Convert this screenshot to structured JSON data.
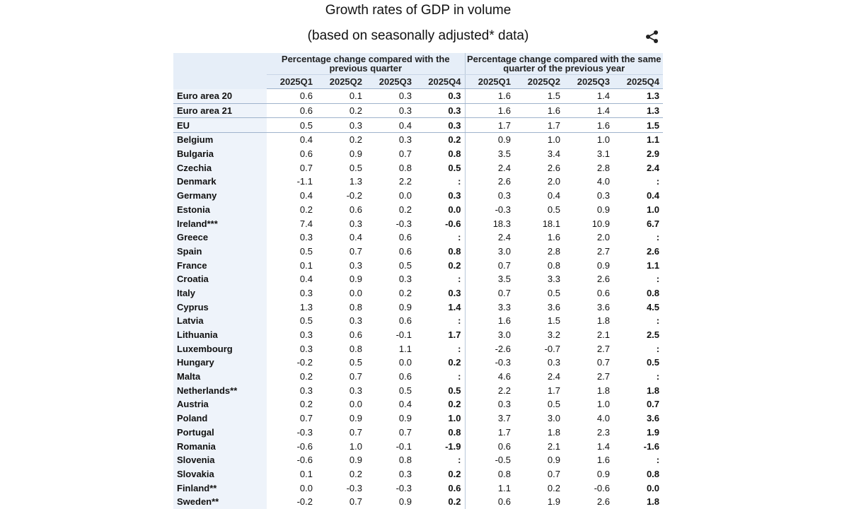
{
  "header": {
    "title": "Growth rates of GDP in volume",
    "subtitle": "(based on seasonally adjusted* data)"
  },
  "table": {
    "groups": [
      {
        "label": "Percentage change compared with the previous quarter",
        "columns": [
          "2025Q1",
          "2025Q2",
          "2025Q3",
          "2025Q4"
        ]
      },
      {
        "label": "Percentage change compared with the same quarter of the previous year",
        "columns": [
          "2025Q1",
          "2025Q2",
          "2025Q3",
          "2025Q4"
        ]
      }
    ],
    "rows": [
      {
        "label": "Euro area 20",
        "values": [
          "0.6",
          "0.1",
          "0.3",
          "0.3",
          "1.6",
          "1.5",
          "1.4",
          "1.3"
        ]
      },
      {
        "label": "Euro area 21",
        "values": [
          "0.6",
          "0.2",
          "0.3",
          "0.3",
          "1.6",
          "1.6",
          "1.4",
          "1.3"
        ]
      },
      {
        "label": "EU",
        "values": [
          "0.5",
          "0.3",
          "0.4",
          "0.3",
          "1.7",
          "1.7",
          "1.6",
          "1.5"
        ]
      },
      {
        "label": "Belgium",
        "values": [
          "0.4",
          "0.2",
          "0.3",
          "0.2",
          "0.9",
          "1.0",
          "1.0",
          "1.1"
        ]
      },
      {
        "label": "Bulgaria",
        "values": [
          "0.6",
          "0.9",
          "0.7",
          "0.8",
          "3.5",
          "3.4",
          "3.1",
          "2.9"
        ]
      },
      {
        "label": "Czechia",
        "values": [
          "0.7",
          "0.5",
          "0.8",
          "0.5",
          "2.4",
          "2.6",
          "2.8",
          "2.4"
        ]
      },
      {
        "label": "Denmark",
        "values": [
          "-1.1",
          "1.3",
          "2.2",
          ":",
          "2.6",
          "2.0",
          "4.0",
          ":"
        ]
      },
      {
        "label": "Germany",
        "values": [
          "0.4",
          "-0.2",
          "0.0",
          "0.3",
          "0.3",
          "0.4",
          "0.3",
          "0.4"
        ]
      },
      {
        "label": "Estonia",
        "values": [
          "0.2",
          "0.6",
          "0.2",
          "0.0",
          "-0.3",
          "0.5",
          "0.9",
          "1.0"
        ]
      },
      {
        "label": "Ireland***",
        "values": [
          "7.4",
          "0.3",
          "-0.3",
          "-0.6",
          "18.3",
          "18.1",
          "10.9",
          "6.7"
        ]
      },
      {
        "label": "Greece",
        "values": [
          "0.3",
          "0.4",
          "0.6",
          ":",
          "2.4",
          "1.6",
          "2.0",
          ":"
        ]
      },
      {
        "label": "Spain",
        "values": [
          "0.5",
          "0.7",
          "0.6",
          "0.8",
          "3.0",
          "2.8",
          "2.7",
          "2.6"
        ]
      },
      {
        "label": "France",
        "values": [
          "0.1",
          "0.3",
          "0.5",
          "0.2",
          "0.7",
          "0.8",
          "0.9",
          "1.1"
        ]
      },
      {
        "label": "Croatia",
        "values": [
          "0.4",
          "0.9",
          "0.3",
          ":",
          "3.5",
          "3.3",
          "2.6",
          ":"
        ]
      },
      {
        "label": "Italy",
        "values": [
          "0.3",
          "0.0",
          "0.2",
          "0.3",
          "0.7",
          "0.5",
          "0.6",
          "0.8"
        ]
      },
      {
        "label": "Cyprus",
        "values": [
          "1.3",
          "0.8",
          "0.9",
          "1.4",
          "3.3",
          "3.6",
          "3.6",
          "4.5"
        ]
      },
      {
        "label": "Latvia",
        "values": [
          "0.5",
          "0.3",
          "0.6",
          ":",
          "1.6",
          "1.5",
          "1.8",
          ":"
        ]
      },
      {
        "label": "Lithuania",
        "values": [
          "0.3",
          "0.6",
          "-0.1",
          "1.7",
          "3.0",
          "3.2",
          "2.1",
          "2.5"
        ]
      },
      {
        "label": "Luxembourg",
        "values": [
          "0.3",
          "0.8",
          "1.1",
          ":",
          "-2.6",
          "-0.7",
          "2.7",
          ":"
        ]
      },
      {
        "label": "Hungary",
        "values": [
          "-0.2",
          "0.5",
          "0.0",
          "0.2",
          "-0.3",
          "0.3",
          "0.7",
          "0.5"
        ]
      },
      {
        "label": "Malta",
        "values": [
          "0.2",
          "0.7",
          "0.6",
          ":",
          "4.6",
          "2.4",
          "2.7",
          ":"
        ]
      },
      {
        "label": "Netherlands**",
        "values": [
          "0.3",
          "0.3",
          "0.5",
          "0.5",
          "2.2",
          "1.7",
          "1.8",
          "1.8"
        ]
      },
      {
        "label": "Austria",
        "values": [
          "0.2",
          "0.0",
          "0.4",
          "0.2",
          "0.3",
          "0.5",
          "1.0",
          "0.7"
        ]
      },
      {
        "label": "Poland",
        "values": [
          "0.7",
          "0.9",
          "0.9",
          "1.0",
          "3.7",
          "3.0",
          "4.0",
          "3.6"
        ]
      },
      {
        "label": "Portugal",
        "values": [
          "-0.3",
          "0.7",
          "0.7",
          "0.8",
          "1.7",
          "1.8",
          "2.3",
          "1.9"
        ]
      },
      {
        "label": "Romania",
        "values": [
          "-0.6",
          "1.0",
          "-0.1",
          "-1.9",
          "0.6",
          "2.1",
          "1.4",
          "-1.6"
        ]
      },
      {
        "label": "Slovenia",
        "values": [
          "-0.6",
          "0.9",
          "0.8",
          ":",
          "-0.5",
          "0.9",
          "1.6",
          ":"
        ]
      },
      {
        "label": "Slovakia",
        "values": [
          "0.1",
          "0.2",
          "0.3",
          "0.2",
          "0.8",
          "0.7",
          "0.9",
          "0.8"
        ]
      },
      {
        "label": "Finland**",
        "values": [
          "0.0",
          "-0.3",
          "-0.3",
          "0.6",
          "1.1",
          "0.2",
          "-0.6",
          "0.0"
        ]
      },
      {
        "label": "Sweden**",
        "values": [
          "-0.2",
          "0.7",
          "0.9",
          "0.2",
          "0.6",
          "1.9",
          "2.6",
          "1.8"
        ]
      }
    ]
  }
}
